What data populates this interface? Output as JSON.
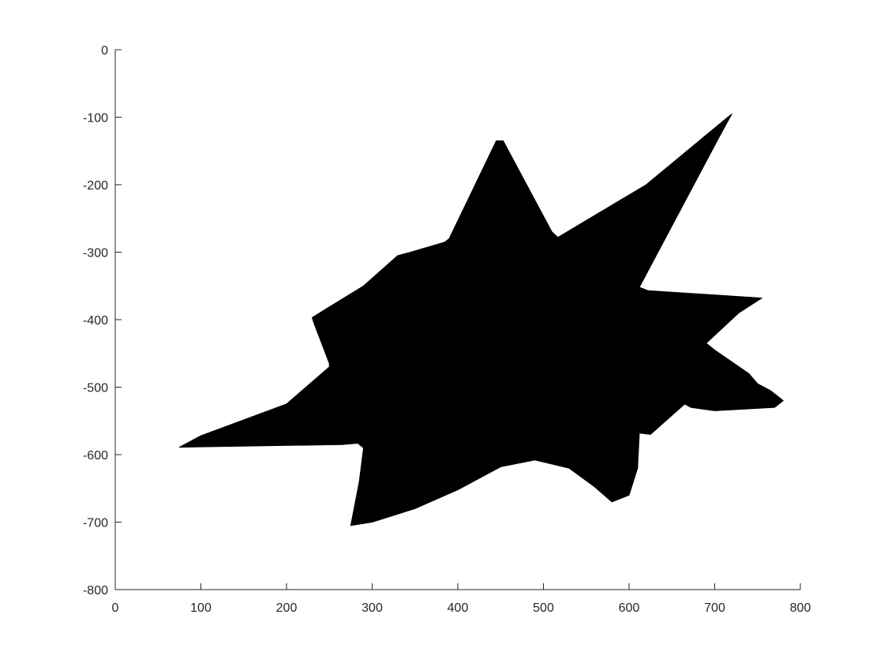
{
  "chart_data": {
    "type": "area",
    "title": "",
    "xlabel": "",
    "ylabel": "",
    "xlim": [
      0,
      800
    ],
    "ylim": [
      -800,
      0
    ],
    "grid": false,
    "xticks": [
      0,
      100,
      200,
      300,
      400,
      500,
      600,
      700,
      800
    ],
    "yticks": [
      0,
      -100,
      -200,
      -300,
      -400,
      -500,
      -600,
      -700,
      -800
    ],
    "fill_color": "#000000",
    "series": [
      {
        "x": [
          720,
          705,
          612,
          622,
          695,
          755,
          728,
          690,
          700,
          740,
          750,
          765,
          775,
          780,
          770,
          700,
          672,
          665,
          625,
          612,
          610,
          600,
          580,
          560,
          530,
          490,
          450,
          400,
          350,
          300,
          275,
          285,
          290,
          283,
          265,
          75,
          100,
          200,
          250,
          250,
          232,
          230,
          245,
          290,
          330,
          345,
          385,
          390,
          445,
          453,
          510,
          517,
          620
        ],
        "y": [
          -95,
          -130,
          -352,
          -357,
          -363,
          -368,
          -390,
          -435,
          -445,
          -480,
          -495,
          -505,
          -515,
          -520,
          -530,
          -535,
          -530,
          -525,
          -570,
          -568,
          -620,
          -660,
          -670,
          -648,
          -620,
          -608,
          -618,
          -652,
          -680,
          -700,
          -705,
          -640,
          -590,
          -583,
          -585,
          -589,
          -572,
          -525,
          -470,
          -465,
          -405,
          -397,
          -385,
          -350,
          -305,
          -300,
          -285,
          -280,
          -135,
          -135,
          -270,
          -278,
          -200
        ]
      }
    ]
  }
}
